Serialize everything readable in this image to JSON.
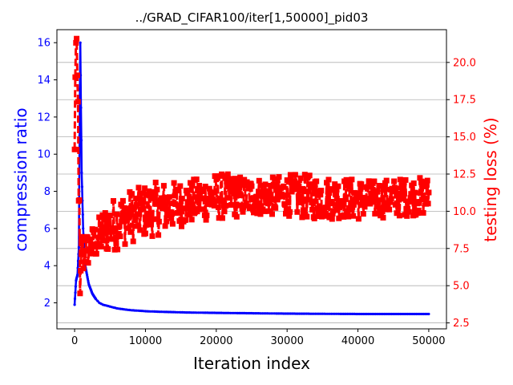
{
  "chart_data": {
    "type": "line",
    "title": "../GRAD_CIFAR100/iter[1,50000]_pid03",
    "xlabel": "Iteration index",
    "ylabel_left": "compression ratio",
    "ylabel_right": "testing loss (%)",
    "xlim": [
      -2500,
      52500
    ],
    "ylim_left": [
      0.6,
      16.7
    ],
    "ylim_right": [
      2.1,
      22.2
    ],
    "x_ticks": [
      0,
      10000,
      20000,
      30000,
      40000,
      50000
    ],
    "x_tick_labels": [
      "0",
      "10000",
      "20000",
      "30000",
      "40000",
      "50000"
    ],
    "y_left_ticks": [
      2,
      4,
      6,
      8,
      10,
      12,
      14,
      16
    ],
    "y_left_tick_labels": [
      "2",
      "4",
      "6",
      "8",
      "10",
      "12",
      "14",
      "16"
    ],
    "y_right_ticks": [
      2.5,
      5.0,
      7.5,
      10.0,
      12.5,
      15.0,
      17.5,
      20.0
    ],
    "y_right_tick_labels": [
      "2.5",
      "5.0",
      "7.5",
      "10.0",
      "12.5",
      "15.0",
      "17.5",
      "20.0"
    ],
    "grid": "horizontal lines at right-axis ticks",
    "colors": {
      "left_axis": "#0000ff",
      "right_axis": "#ff0000",
      "grid": "#b0b0b0"
    },
    "series": [
      {
        "axis": "left",
        "color": "#0000ff",
        "style": "solid line with small dot markers",
        "x": [
          0,
          200,
          400,
          600,
          700,
          800,
          900,
          1000,
          1200,
          1500,
          2000,
          2500,
          3000,
          3500,
          4000,
          5000,
          6000,
          7000,
          8000,
          9000,
          10000,
          12000,
          14000,
          16000,
          18000,
          20000,
          25000,
          30000,
          35000,
          40000,
          45000,
          50000
        ],
        "values": [
          1.9,
          3.2,
          3.5,
          5.0,
          11.0,
          16.0,
          12.5,
          9.0,
          6.0,
          4.0,
          3.0,
          2.5,
          2.2,
          2.0,
          1.9,
          1.8,
          1.7,
          1.65,
          1.6,
          1.58,
          1.55,
          1.52,
          1.5,
          1.48,
          1.47,
          1.46,
          1.44,
          1.42,
          1.41,
          1.4,
          1.4,
          1.4
        ]
      },
      {
        "axis": "right",
        "color": "#ff0000",
        "style": "dashed line with square markers, heavy oscillation",
        "x": [
          0,
          100,
          200,
          300,
          400,
          500,
          600,
          700,
          800,
          900,
          1000,
          1200,
          1500,
          2000,
          2500,
          3000,
          3500,
          4000,
          5000,
          6000,
          7000,
          8000,
          9000,
          10000,
          12000,
          14000,
          16000,
          18000,
          20000,
          22000,
          25000,
          28000,
          30000,
          32000,
          35000,
          38000,
          40000,
          42000,
          45000,
          48000,
          50000
        ],
        "values": [
          14.0,
          20.0,
          21.3,
          21.3,
          18.0,
          16.0,
          12.0,
          7.0,
          2.6,
          6.0,
          8.0,
          7.0,
          7.3,
          7.5,
          7.8,
          8.0,
          8.3,
          8.6,
          9.0,
          9.2,
          9.5,
          9.7,
          9.8,
          10.0,
          10.2,
          10.4,
          10.6,
          10.8,
          11.0,
          11.0,
          11.0,
          11.0,
          11.1,
          11.0,
          10.9,
          10.9,
          10.8,
          10.8,
          10.9,
          11.0,
          11.0
        ],
        "spread": [
          0.5,
          2.0,
          0.3,
          0.3,
          2.0,
          3.0,
          3.5,
          3.0,
          0.5,
          2.5,
          2.0,
          1.5,
          1.2,
          1.2,
          1.2,
          1.3,
          1.4,
          1.6,
          1.8,
          1.8,
          1.8,
          1.8,
          1.8,
          1.8,
          1.8,
          1.6,
          1.5,
          1.5,
          1.6,
          1.5,
          1.3,
          1.3,
          1.4,
          1.5,
          1.5,
          1.4,
          1.4,
          1.3,
          1.3,
          1.3,
          1.3
        ]
      }
    ]
  }
}
